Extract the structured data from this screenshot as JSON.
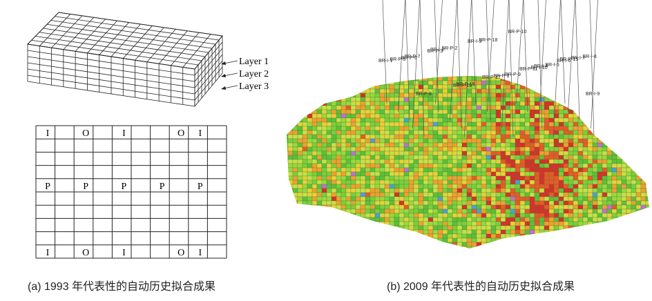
{
  "panel_a": {
    "layers": [
      "Layer 1",
      "Layer 2",
      "Layer 3"
    ],
    "cells": [
      [
        "I",
        null,
        "O",
        null,
        "I",
        null,
        null,
        "O",
        "I",
        null
      ],
      [
        null,
        null,
        null,
        null,
        null,
        null,
        null,
        null,
        null,
        null
      ],
      [
        null,
        null,
        null,
        null,
        null,
        null,
        null,
        null,
        null,
        null
      ],
      [
        null,
        null,
        null,
        null,
        null,
        null,
        null,
        null,
        null,
        null
      ],
      [
        "P",
        null,
        "P",
        null,
        "P",
        null,
        "P",
        null,
        "P",
        null
      ],
      [
        null,
        null,
        null,
        null,
        null,
        null,
        null,
        null,
        null,
        null
      ],
      [
        null,
        null,
        null,
        null,
        null,
        null,
        null,
        null,
        null,
        null
      ],
      [
        null,
        null,
        null,
        null,
        null,
        null,
        null,
        null,
        null,
        null
      ],
      [
        null,
        null,
        null,
        null,
        null,
        null,
        null,
        null,
        null,
        null
      ],
      [
        "I",
        null,
        "O",
        null,
        "I",
        null,
        null,
        "O",
        "I",
        null
      ]
    ],
    "caption": "(a) 1993 年代表性的自动历史拟合成果"
  },
  "panel_b": {
    "wells": [
      "BR-I-1",
      "BR-P-5",
      "BR-P-6",
      "BR-P-7",
      "BR-P-8",
      "BR-P-3",
      "BR-I-2",
      "BR-P-2",
      "BR-P-19",
      "BR-P-16",
      "BR-I-3",
      "BR-P-18",
      "BR-P-17",
      "BR-P-1",
      "BR-P-9",
      "BR-P-10",
      "BR-P-11",
      "BR-I-10",
      "BR-I-4",
      "BR-I-5",
      "BR-I-6",
      "BR-P-15",
      "BR-I-7",
      "BR-I-8",
      "BR-I-9"
    ],
    "caption": "(b) 2009 年代表性的自动历史拟合成果"
  }
}
